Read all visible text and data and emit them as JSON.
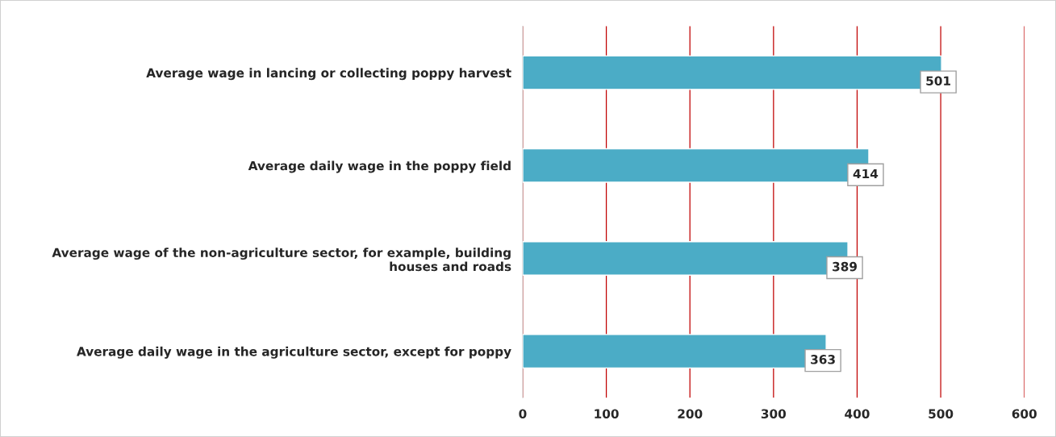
{
  "chart_data": {
    "type": "bar",
    "orientation": "horizontal",
    "categories": [
      "Average wage in lancing or collecting poppy harvest",
      "Average daily wage in the poppy field",
      "Average wage of the non-agriculture sector, for example, building\nhouses and roads",
      "Average daily wage in the agriculture sector, except for poppy"
    ],
    "values": [
      501,
      414,
      389,
      363
    ],
    "color": "#4bacc6",
    "xlim": [
      0,
      600
    ],
    "xticks": [
      0,
      100,
      200,
      300,
      400,
      500,
      600
    ],
    "grid": "x",
    "data_labels": true
  }
}
